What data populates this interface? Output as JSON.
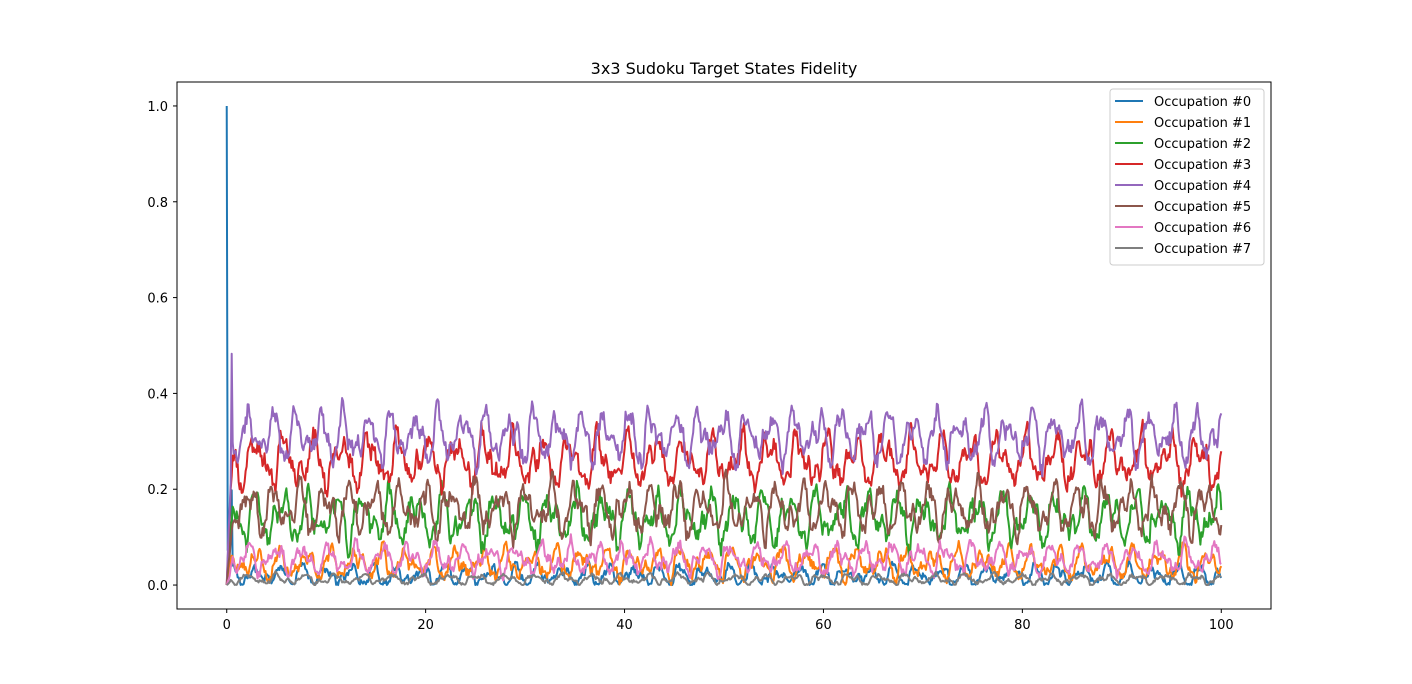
{
  "chart_data": {
    "type": "line",
    "title": "3x3 Sudoku Target States Fidelity",
    "xlabel": "",
    "ylabel": "",
    "xlim": [
      -5,
      105
    ],
    "ylim": [
      -0.05,
      1.05
    ],
    "xticks": [
      0,
      20,
      40,
      60,
      80,
      100
    ],
    "xtick_labels": [
      "0",
      "20",
      "40",
      "60",
      "80",
      "100"
    ],
    "yticks": [
      0.0,
      0.2,
      0.4,
      0.6,
      0.8,
      1.0
    ],
    "ytick_labels": [
      "0.0",
      "0.2",
      "0.4",
      "0.6",
      "0.8",
      "1.0"
    ],
    "grid": false,
    "legend_position": "top-right",
    "x_range": [
      0,
      100
    ],
    "series": [
      {
        "name": "Occupation #0",
        "color": "#1f77b4",
        "start": 1.0,
        "mean": 0.02,
        "amplitude": 0.025,
        "peak": 0.2
      },
      {
        "name": "Occupation #1",
        "color": "#ff7f0e",
        "start": 0.0,
        "mean": 0.045,
        "amplitude": 0.035,
        "peak": 0.395
      },
      {
        "name": "Occupation #2",
        "color": "#2ca02c",
        "start": 0.0,
        "mean": 0.14,
        "amplitude": 0.06,
        "peak": 0.26
      },
      {
        "name": "Occupation #3",
        "color": "#d62728",
        "start": 0.0,
        "mean": 0.26,
        "amplitude": 0.06,
        "peak": 0.41
      },
      {
        "name": "Occupation #4",
        "color": "#9467bd",
        "start": 0.0,
        "mean": 0.31,
        "amplitude": 0.06,
        "peak": 0.57
      },
      {
        "name": "Occupation #5",
        "color": "#8c564b",
        "start": 0.0,
        "mean": 0.16,
        "amplitude": 0.06,
        "peak": 0.31
      },
      {
        "name": "Occupation #6",
        "color": "#e377c2",
        "start": 0.0,
        "mean": 0.055,
        "amplitude": 0.035,
        "peak": 0.13
      },
      {
        "name": "Occupation #7",
        "color": "#7f7f7f",
        "start": 0.0,
        "mean": 0.012,
        "amplitude": 0.012,
        "peak": 0.05
      }
    ]
  }
}
